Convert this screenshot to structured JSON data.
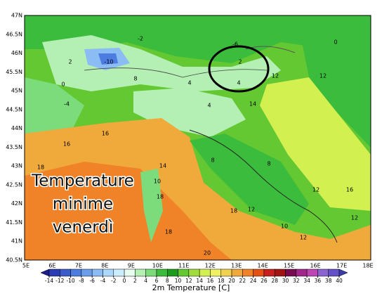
{
  "map": {
    "lat_labels": [
      "47N",
      "46.5N",
      "46N",
      "45.5N",
      "45N",
      "44.5N",
      "44N",
      "43.5N",
      "43N",
      "42.5N",
      "42N",
      "41.5N",
      "41N",
      "40.5N"
    ],
    "lon_labels": [
      "5E",
      "6E",
      "7E",
      "8E",
      "9E",
      "10E",
      "11E",
      "12E",
      "13E",
      "14E",
      "15E",
      "16E",
      "17E",
      "18E"
    ],
    "labels": [
      -6,
      2,
      4,
      -10,
      2,
      -2,
      -4,
      0,
      8,
      4,
      12,
      12,
      0,
      14,
      4,
      16,
      16,
      18,
      14,
      18,
      10,
      8,
      8,
      12,
      18,
      16,
      12,
      20,
      10,
      12,
      18,
      12
    ],
    "overlay": [
      "Temperature",
      "minime",
      "venerdì"
    ]
  },
  "colorbar": {
    "title": "2m Temperature [C]",
    "ticks": [
      -14,
      -12,
      -10,
      -8,
      -6,
      -4,
      -2,
      0,
      2,
      4,
      6,
      8,
      10,
      12,
      14,
      16,
      18,
      20,
      22,
      24,
      26,
      28,
      30,
      32,
      34,
      36,
      38,
      40
    ],
    "colors": [
      "#1c1c8c",
      "#2c3cb4",
      "#3c5ccc",
      "#4c7ce0",
      "#6c9cec",
      "#8cbcf4",
      "#acd8fc",
      "#cceefc",
      "#e8fcf0",
      "#b4f0b4",
      "#7cdc7c",
      "#3cbc3c",
      "#1c9c1c",
      "#64c832",
      "#a0dc3c",
      "#d2f050",
      "#f0f064",
      "#f0d250",
      "#f0aa3c",
      "#f08228",
      "#e65014",
      "#c81e1e",
      "#a01414",
      "#780a50",
      "#a0288c",
      "#be46b4",
      "#8c64d2",
      "#6450c8",
      "#3c3caa"
    ]
  }
}
